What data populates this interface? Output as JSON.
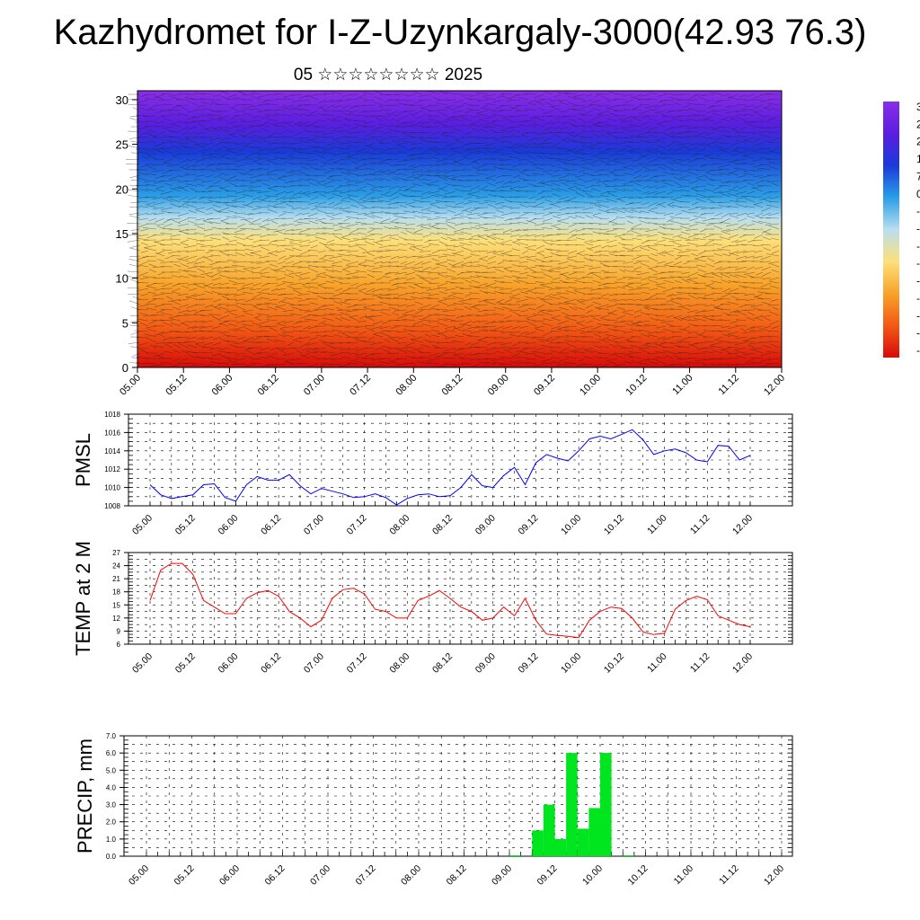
{
  "title": "Kazhydromet for I-Z-Uzynkargaly-3000(42.93 76.3)",
  "subtitle": "05 ☆☆☆☆☆☆☆☆ 2025",
  "chart_data": [
    {
      "type": "heatmap",
      "title": "Kazhydromet for I-Z-Uzynkargaly-3000(42.93 76.3)",
      "subtitle": "05 ☆☆☆☆☆☆☆☆ 2025",
      "x_ticks": [
        "05.00",
        "05.12",
        "06.00",
        "06.12",
        "07.00",
        "07.12",
        "08.00",
        "08.12",
        "09.00",
        "09.12",
        "10.00",
        "10.12",
        "11.00",
        "11.12",
        "12.00"
      ],
      "y_ticks": [
        0,
        5,
        10,
        15,
        20,
        25,
        30
      ],
      "ylim": [
        0,
        31
      ],
      "colorbar_labels_partial": [
        "3",
        "2",
        "2",
        "1",
        "7",
        "0",
        "-",
        "-",
        "-",
        "-",
        "-",
        "-",
        "-",
        "-",
        "-"
      ],
      "overlay": "wind barbs",
      "colors": [
        "#d70a0a",
        "#f25a14",
        "#f8a32a",
        "#fde07a",
        "#b8dff0",
        "#2a9ee6",
        "#1a3ad8",
        "#5a1ee0",
        "#8a2ee8"
      ]
    },
    {
      "type": "line",
      "ylabel": "PMSL",
      "ylim": [
        1008,
        1018
      ],
      "y_ticks": [
        1008,
        1010,
        1012,
        1014,
        1016,
        1018
      ],
      "x_ticks": [
        "05.00",
        "05.12",
        "06.00",
        "06.12",
        "07.00",
        "07.12",
        "08.00",
        "08.12",
        "09.00",
        "09.12",
        "10.00",
        "10.12",
        "11.00",
        "11.12",
        "12.00"
      ],
      "color": "#0000ff",
      "x": [
        0,
        1,
        2,
        3,
        4,
        5,
        6,
        7,
        8,
        9,
        10,
        11,
        12,
        13,
        14,
        15,
        16,
        17,
        18,
        19,
        20,
        21,
        22,
        23,
        24,
        25,
        26,
        27,
        28,
        29,
        30,
        31,
        32,
        33,
        34,
        35,
        36,
        37,
        38,
        39,
        40,
        41,
        42,
        43,
        44,
        45,
        46,
        47,
        48,
        49,
        50,
        51,
        52,
        53,
        54,
        55,
        56
      ],
      "values": [
        1010.3,
        1009.2,
        1008.8,
        1009.0,
        1009.2,
        1010.3,
        1010.4,
        1008.9,
        1008.5,
        1010.3,
        1011.2,
        1010.8,
        1010.8,
        1011.4,
        1010.2,
        1009.3,
        1009.9,
        1009.6,
        1009.3,
        1008.9,
        1009.0,
        1009.3,
        1008.9,
        1008.1,
        1008.8,
        1009.2,
        1009.3,
        1009.0,
        1009.1,
        1010.0,
        1011.4,
        1010.2,
        1010.0,
        1011.3,
        1012.2,
        1010.3,
        1012.7,
        1013.6,
        1013.2,
        1012.9,
        1014.0,
        1015.3,
        1015.6,
        1015.3,
        1015.8,
        1016.3,
        1015.2,
        1013.6,
        1014.0,
        1014.2,
        1013.8,
        1013.0,
        1012.8,
        1014.6,
        1014.5,
        1013.0,
        1013.5
      ]
    },
    {
      "type": "line",
      "ylabel": "TEMP at 2 M",
      "ylim": [
        6,
        27
      ],
      "y_ticks": [
        6,
        9,
        12,
        15,
        18,
        21,
        24,
        27
      ],
      "x_ticks": [
        "05.00",
        "05.12",
        "06.00",
        "06.12",
        "07.00",
        "07.12",
        "08.00",
        "08.12",
        "09.00",
        "09.12",
        "10.00",
        "10.12",
        "11.00",
        "11.12",
        "12.00"
      ],
      "color": "#ff0000",
      "x": [
        0,
        1,
        2,
        3,
        4,
        5,
        6,
        7,
        8,
        9,
        10,
        11,
        12,
        13,
        14,
        15,
        16,
        17,
        18,
        19,
        20,
        21,
        22,
        23,
        24,
        25,
        26,
        27,
        28,
        29,
        30,
        31,
        32,
        33,
        34,
        35,
        36,
        37,
        38,
        39,
        40,
        41,
        42,
        43,
        44,
        45,
        46,
        47,
        48,
        49,
        50,
        51,
        52,
        53,
        54,
        55,
        56
      ],
      "values": [
        16,
        23,
        24.5,
        24.5,
        22,
        16,
        14.5,
        13,
        13,
        16.5,
        17.8,
        18.3,
        17,
        13.5,
        12,
        10,
        11.5,
        16.5,
        18.5,
        18.8,
        17.5,
        14,
        13.5,
        12,
        12,
        16,
        17,
        18.3,
        16.5,
        14.5,
        13.5,
        11.5,
        12,
        14.5,
        12.5,
        16.5,
        11.5,
        8.3,
        8,
        7.8,
        7.5,
        11.5,
        13.5,
        14.5,
        14.2,
        12,
        8.8,
        8.2,
        8.5,
        14,
        16,
        17,
        16.2,
        12.5,
        11.5,
        10.5,
        10
      ]
    },
    {
      "type": "bar",
      "ylabel": "PRECIP, mm",
      "ylim": [
        0,
        7
      ],
      "y_ticks": [
        "0.0",
        "1.0",
        "2.0",
        "3.0",
        "4.0",
        "5.0",
        "6.0",
        "7.0"
      ],
      "x_ticks": [
        "05.00",
        "05.12",
        "06.00",
        "06.12",
        "07.00",
        "07.12",
        "08.00",
        "08.12",
        "09.00",
        "09.12",
        "10.00",
        "10.12",
        "11.00",
        "11.12",
        "12.00"
      ],
      "color": "#00e61e",
      "x": [
        32,
        34,
        35,
        36,
        37,
        38,
        39,
        40,
        42
      ],
      "values": [
        0.05,
        1.5,
        3.0,
        1.0,
        6.0,
        1.6,
        2.8,
        6.0,
        0.05
      ]
    }
  ]
}
